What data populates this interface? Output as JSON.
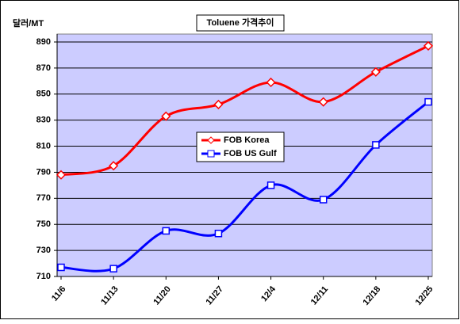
{
  "chart_data": {
    "type": "line",
    "title": "Toluene 가격추이",
    "y_label": "달러/MT",
    "categories": [
      "11/6",
      "11/13",
      "11/20",
      "11/27",
      "12/4",
      "12/11",
      "12/18",
      "12/25"
    ],
    "series": [
      {
        "name": "FOB Korea",
        "color": "#ff0000",
        "values": [
          788,
          795,
          833,
          842,
          859,
          844,
          867,
          887
        ]
      },
      {
        "name": "FOB US Gulf",
        "color": "#0000ff",
        "values": [
          717,
          716,
          745,
          743,
          780,
          769,
          811,
          844
        ]
      }
    ],
    "ylim": [
      710,
      890
    ],
    "yticks": [
      710,
      730,
      750,
      770,
      790,
      810,
      830,
      850,
      870,
      890
    ],
    "grid": true,
    "smooth": true,
    "legend": "center",
    "background": "#ccccff"
  }
}
